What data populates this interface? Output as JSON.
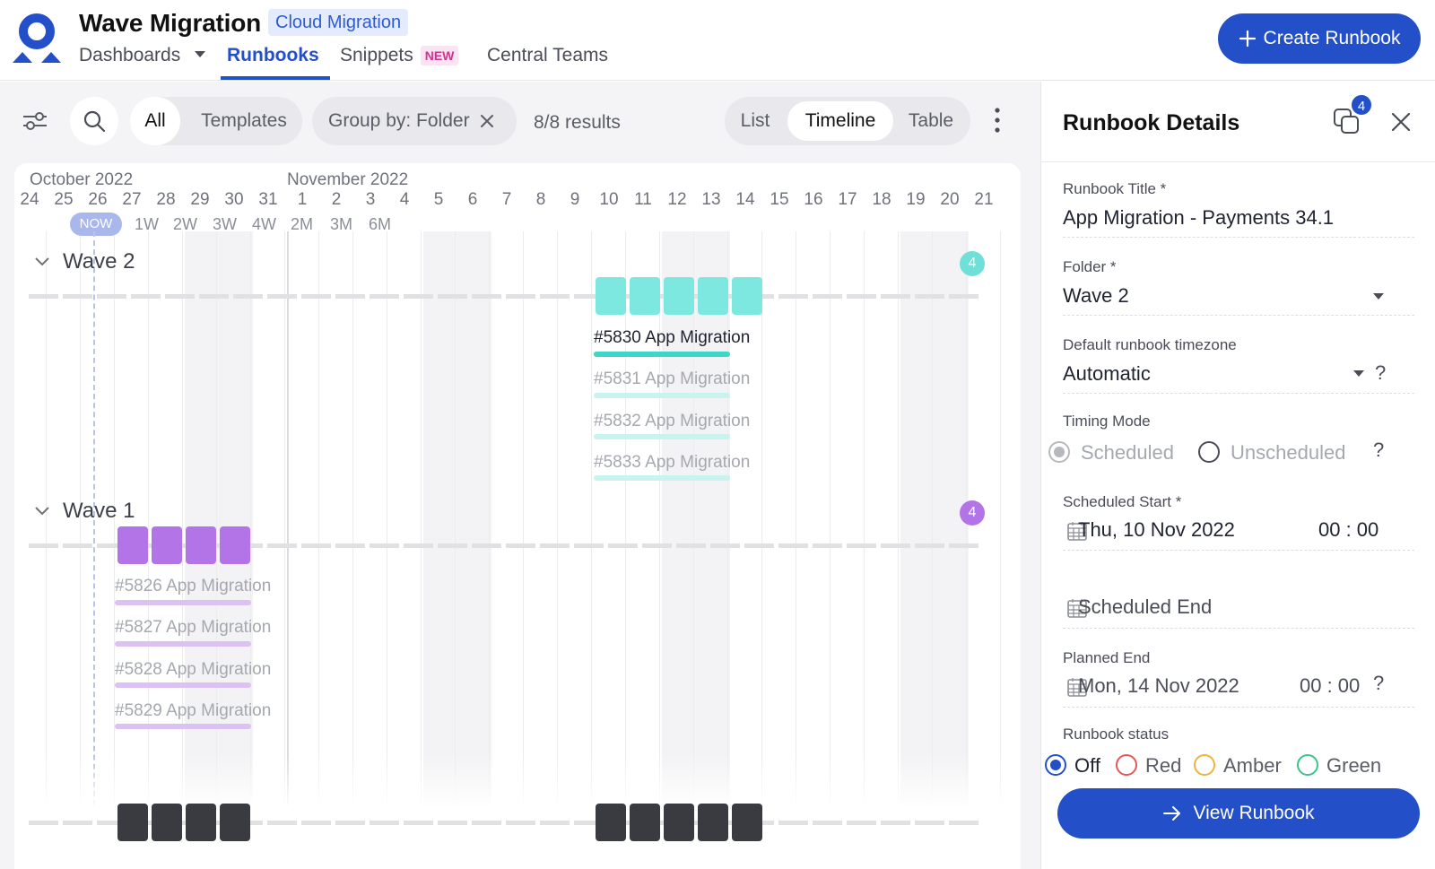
{
  "header": {
    "title": "Wave Migration",
    "tag": "Cloud Migration",
    "nav": {
      "dashboards": "Dashboards",
      "runbooks": "Runbooks",
      "snippets": "Snippets",
      "snippets_badge": "NEW",
      "central_teams": "Central Teams"
    },
    "create_button": "Create Runbook",
    "accent_color": "#2350c8"
  },
  "toolbar": {
    "filter_all": "All",
    "filter_templates": "Templates",
    "group_by": "Group by: Folder",
    "results": "8/8 results",
    "view_list": "List",
    "view_timeline": "Timeline",
    "view_table": "Table"
  },
  "timeline": {
    "months": [
      "October 2022",
      "November 2022"
    ],
    "days": [
      "24",
      "25",
      "26",
      "27",
      "28",
      "29",
      "30",
      "31",
      "1",
      "2",
      "3",
      "4",
      "5",
      "6",
      "7",
      "8",
      "9",
      "10",
      "11",
      "12",
      "13",
      "14",
      "15",
      "16",
      "17",
      "18",
      "19",
      "20",
      "21"
    ],
    "now_label": "NOW",
    "zoom_options": [
      "1W",
      "2W",
      "3W",
      "4W",
      "2M",
      "3M",
      "6M"
    ],
    "groups": [
      {
        "name": "Wave 2",
        "count": "4",
        "color": "#7de8df",
        "runbooks": [
          "#5830 App Migration",
          "#5831 App Migration",
          "#5832 App Migration",
          "#5833 App Migration"
        ]
      },
      {
        "name": "Wave 1",
        "count": "4",
        "color": "#b374e8",
        "runbooks": [
          "#5826 App Migration",
          "#5827 App Migration",
          "#5828 App Migration",
          "#5829 App Migration"
        ]
      }
    ]
  },
  "panel": {
    "title": "Runbook Details",
    "copies_badge": "4",
    "runbook_title_label": "Runbook Title *",
    "runbook_title_value": "App Migration - Payments 34.1",
    "folder_label": "Folder *",
    "folder_value": "Wave 2",
    "timezone_label": "Default runbook timezone",
    "timezone_value": "Automatic",
    "timing_mode_label": "Timing Mode",
    "timing_scheduled": "Scheduled",
    "timing_unscheduled": "Unscheduled",
    "scheduled_start_label": "Scheduled Start *",
    "scheduled_start_date": "Thu, 10 Nov 2022",
    "scheduled_start_time": "00 : 00",
    "scheduled_end_placeholder": "Scheduled End",
    "planned_end_label": "Planned End",
    "planned_end_date": "Mon, 14 Nov 2022",
    "planned_end_time": "00 : 00",
    "status_label": "Runbook status",
    "status_off": "Off",
    "status_red": "Red",
    "status_amber": "Amber",
    "status_green": "Green",
    "view_button": "View Runbook",
    "question": "?"
  }
}
